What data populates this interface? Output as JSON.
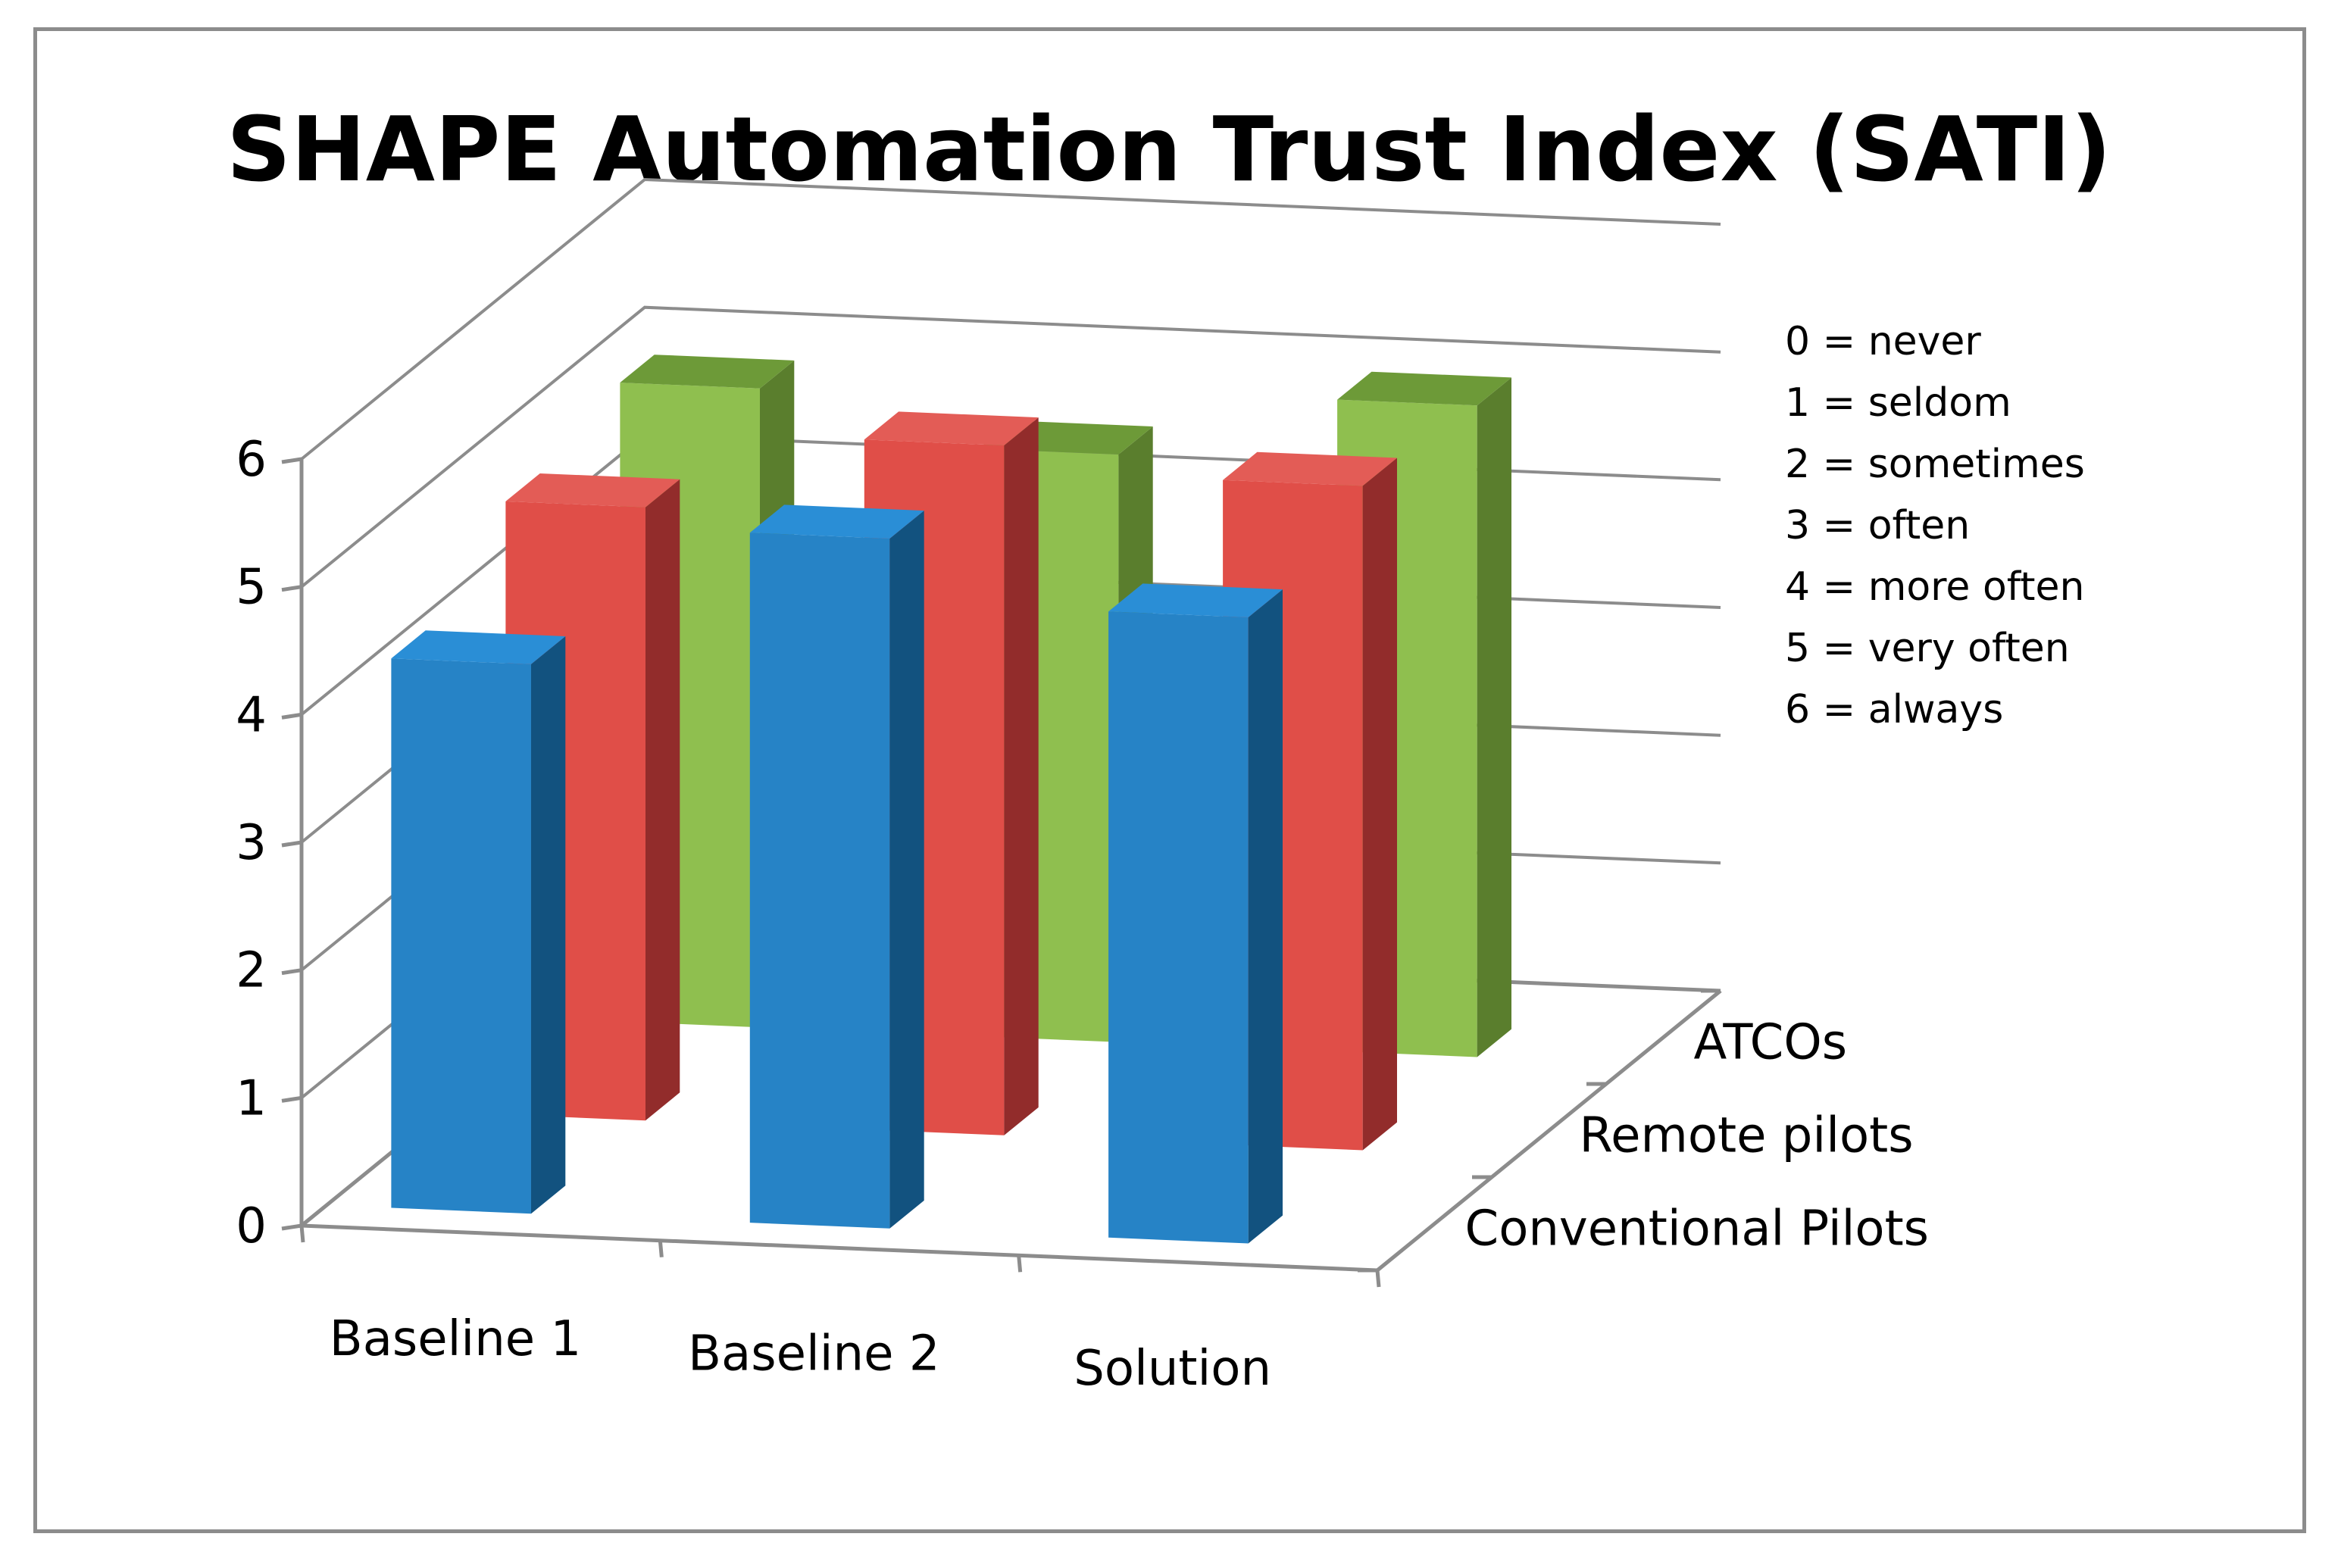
{
  "chart_data": {
    "type": "bar",
    "title": "SHAPE Automation Trust Index (SATI)",
    "categories": [
      "Baseline 1",
      "Baseline 2",
      "Solution"
    ],
    "series": [
      {
        "name": "Conventional Pilots",
        "values": [
          4.3,
          5.4,
          4.9
        ],
        "colors": {
          "front": "#2683c6",
          "side": "#12527f",
          "top": "#2a8ed6"
        }
      },
      {
        "name": "Remote pilots",
        "values": [
          4.8,
          5.4,
          5.2
        ],
        "colors": {
          "front": "#e04e48",
          "side": "#922c2b",
          "top": "#e35c56"
        }
      },
      {
        "name": "ATCOs",
        "values": [
          5.0,
          4.6,
          5.1
        ],
        "colors": {
          "front": "#8fbf4f",
          "side": "#5a7e2d",
          "top": "#6d9a38"
        }
      }
    ],
    "y_ticks": [
      "0",
      "1",
      "2",
      "3",
      "4",
      "5",
      "6"
    ],
    "ylim": [
      0,
      6
    ],
    "grid": true,
    "legend": "none",
    "scale_notes": [
      "0 = never",
      "1 = seldom",
      "2 = sometimes",
      "3 = often",
      "4 = more often",
      "5 = very often",
      "6 = always"
    ],
    "style": {
      "axis_color": "#8c8c8c",
      "border_color": "#8c8c8c",
      "background": "#ffffff"
    }
  }
}
